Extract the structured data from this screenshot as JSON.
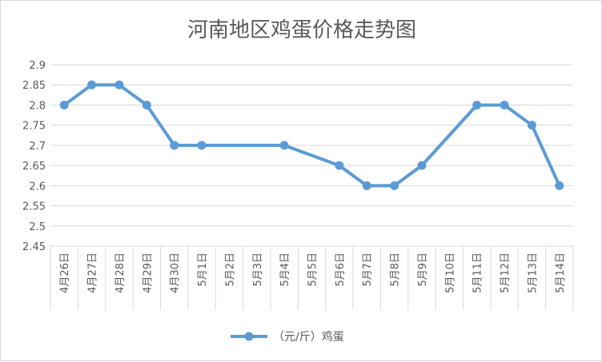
{
  "chart_data": {
    "type": "line",
    "title": "河南地区鸡蛋价格走势图",
    "categories": [
      "4月26日",
      "4月27日",
      "4月28日",
      "4月29日",
      "4月30日",
      "5月1日",
      "5月2日",
      "5月3日",
      "5月4日",
      "5月5日",
      "5月6日",
      "5月7日",
      "5月8日",
      "5月9日",
      "5月10日",
      "5月11日",
      "5月12日",
      "5月13日",
      "5月14日"
    ],
    "series": [
      {
        "name": "（元/斤）鸡蛋",
        "color": "#5b9bd5",
        "values": [
          2.8,
          2.85,
          2.85,
          2.8,
          2.7,
          2.7,
          null,
          null,
          2.7,
          null,
          2.65,
          2.6,
          2.6,
          2.65,
          null,
          2.8,
          2.8,
          2.75,
          2.6
        ]
      }
    ],
    "ylim": [
      2.45,
      2.9
    ],
    "yticks": [
      "2.9",
      "2.85",
      "2.8",
      "2.75",
      "2.7",
      "2.65",
      "2.6",
      "2.55",
      "2.5",
      "2.45"
    ],
    "ystep": 0.05,
    "grid": true,
    "legend_position": "bottom"
  }
}
